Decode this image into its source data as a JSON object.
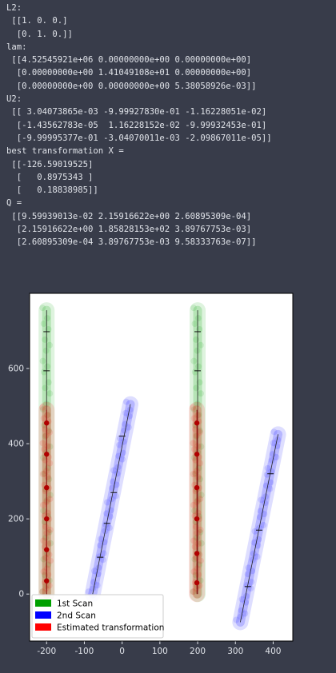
{
  "output_lines": [
    "L2:",
    " [[1. 0. 0.]",
    "  [0. 1. 0.]]",
    "lam:",
    " [[4.52545921e+06 0.00000000e+00 0.00000000e+00]",
    "  [0.00000000e+00 1.41049108e+01 0.00000000e+00]",
    "  [0.00000000e+00 0.00000000e+00 5.38058926e-03]]",
    "U2:",
    " [[ 3.04073865e-03 -9.99927830e-01 -1.16228051e-02]",
    "  [-1.43562783e-05  1.16228152e-02 -9.99932453e-01]",
    "  [-9.99995377e-01 -3.04070011e-03 -2.09867011e-05]]",
    "best transformation X =",
    " [[-126.59019525]",
    "  [   0.8975343 ]",
    "  [   0.18838985]]",
    "Q =",
    " [[9.59939013e-02 2.15916622e+00 2.60895309e-04]",
    "  [2.15916622e+00 1.85828153e+02 3.89767753e-03]",
    "  [2.60895309e-04 3.89767753e-03 9.58333763e-07]]"
  ],
  "colors": {
    "background": "#383c4a",
    "text": "#e1e4ea",
    "scan1": "#00a000",
    "scan2": "#0000ff",
    "estimated": "#ff0000"
  },
  "chart_data": {
    "type": "scatter",
    "xlim": [
      -245,
      452
    ],
    "ylim": [
      -125,
      800
    ],
    "xticks": [
      -200,
      -100,
      0,
      100,
      200,
      300,
      400
    ],
    "yticks": [
      0,
      200,
      400,
      600
    ],
    "xlabel": "",
    "ylabel": "",
    "title": "",
    "grid": false,
    "legend_position": "lower-left",
    "series": [
      {
        "name": "1st Scan",
        "color": "#00a000",
        "segments": [
          {
            "x1": -200,
            "y1": 0,
            "x2": -200,
            "y2": 755
          },
          {
            "x1": 200,
            "y1": 0,
            "x2": 200,
            "y2": 755
          }
        ],
        "markers": [
          {
            "x": -200,
            "y": 698
          },
          {
            "x": -200,
            "y": 594
          },
          {
            "x": 200,
            "y": 698
          },
          {
            "x": 200,
            "y": 594
          }
        ]
      },
      {
        "name": "2nd Scan",
        "color": "#0000ff",
        "segments": [
          {
            "x1": -78,
            "y1": 0,
            "x2": 22,
            "y2": 505
          },
          {
            "x1": 313,
            "y1": -75,
            "x2": 413,
            "y2": 425
          }
        ],
        "markers": [
          {
            "x": -58,
            "y": 98
          },
          {
            "x": -40,
            "y": 188
          },
          {
            "x": -22,
            "y": 270
          },
          {
            "x": 0,
            "y": 420
          },
          {
            "x": 333,
            "y": 20
          },
          {
            "x": 363,
            "y": 170
          },
          {
            "x": 393,
            "y": 320
          }
        ]
      },
      {
        "name": "Estimated transformation",
        "color": "#ff0000",
        "segments": [
          {
            "x1": -200,
            "y1": 0,
            "x2": -200,
            "y2": 490
          },
          {
            "x1": 198,
            "y1": 0,
            "x2": 198,
            "y2": 490
          }
        ],
        "markers": [
          {
            "x": -200,
            "y": 455
          },
          {
            "x": -200,
            "y": 372
          },
          {
            "x": -200,
            "y": 283
          },
          {
            "x": -200,
            "y": 200
          },
          {
            "x": -200,
            "y": 118
          },
          {
            "x": -200,
            "y": 35
          },
          {
            "x": 198,
            "y": 455
          },
          {
            "x": 198,
            "y": 372
          },
          {
            "x": 198,
            "y": 283
          },
          {
            "x": 198,
            "y": 200
          },
          {
            "x": 198,
            "y": 108
          },
          {
            "x": 198,
            "y": 30
          }
        ]
      }
    ]
  }
}
